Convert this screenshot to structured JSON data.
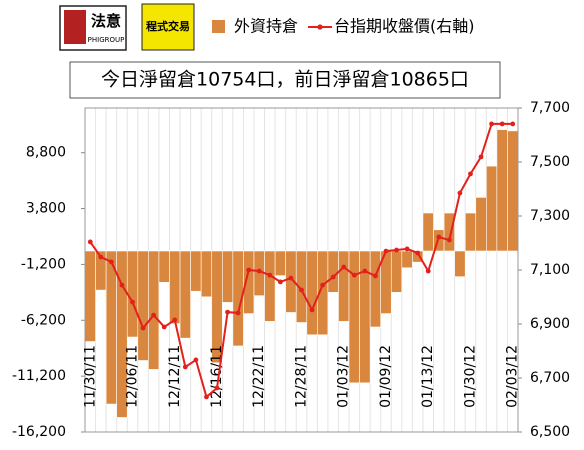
{
  "logos": {
    "left_main": "法意",
    "left_sub": "PHIGROUP",
    "right_main": "程式交易"
  },
  "chart_data": {
    "type": "bar",
    "title": "今日淨留倉10754口，前日淨留倉10865口",
    "categories": [
      "11/30/11",
      null,
      null,
      null,
      "12/06/11",
      null,
      null,
      null,
      "12/12/11",
      null,
      null,
      null,
      "12/16/11",
      null,
      null,
      null,
      "12/22/11",
      null,
      null,
      null,
      "12/28/11",
      null,
      null,
      null,
      "01/03/12",
      null,
      null,
      null,
      "01/09/12",
      null,
      null,
      null,
      "01/13/12",
      null,
      null,
      null,
      "01/30/12",
      null,
      null,
      null,
      "02/03/12"
    ],
    "series": [
      {
        "name": "外資持倉",
        "type": "bar",
        "color": "#d9873f",
        "values": [
          -8100,
          -3500,
          -13700,
          -14900,
          -7700,
          -9800,
          -10600,
          -2800,
          -6500,
          -7800,
          -3600,
          -4100,
          -10000,
          -4600,
          -8500,
          -5600,
          -4000,
          -6300,
          -2200,
          -5500,
          -6400,
          -7500,
          -7500,
          -3700,
          -6300,
          -11800,
          -11800,
          -6800,
          -5600,
          -3700,
          -1500,
          -1000,
          3400,
          1900,
          3400,
          -2300,
          3400,
          4800,
          7600,
          10865,
          10754
        ]
      },
      {
        "name": "台指期收盤價(右軸)",
        "type": "line",
        "axis": "y2",
        "color": "#e3201b",
        "values": [
          7204,
          7148,
          7130,
          7044,
          6981,
          6885,
          6933,
          6889,
          6915,
          6741,
          6767,
          6630,
          6663,
          6944,
          6941,
          7100,
          7096,
          7081,
          7056,
          7070,
          7026,
          6952,
          7044,
          7074,
          7111,
          7081,
          7096,
          7078,
          7170,
          7174,
          7178,
          7163,
          7096,
          7222,
          7211,
          7385,
          7456,
          7519,
          7641,
          7641,
          7641
        ]
      }
    ],
    "ylim": [
      -16200,
      12800
    ],
    "yticks": [
      {
        "value": -16200,
        "label": "-16,200"
      },
      {
        "value": -11200,
        "label": "-11,200"
      },
      {
        "value": -6200,
        "label": "-6,200"
      },
      {
        "value": -1200,
        "label": "-1,200"
      },
      {
        "value": 3800,
        "label": "3,800"
      },
      {
        "value": 8800,
        "label": "8,800"
      }
    ],
    "y2lim": [
      6500,
      7700
    ],
    "y2ticks": [
      {
        "value": 6500,
        "label": "6,500"
      },
      {
        "value": 6700,
        "label": "6,700"
      },
      {
        "value": 6900,
        "label": "6,900"
      },
      {
        "value": 7100,
        "label": "7,100"
      },
      {
        "value": 7300,
        "label": "7,300"
      },
      {
        "value": 7500,
        "label": "7,500"
      },
      {
        "value": 7700,
        "label": "7,700"
      }
    ],
    "legend": "top"
  }
}
